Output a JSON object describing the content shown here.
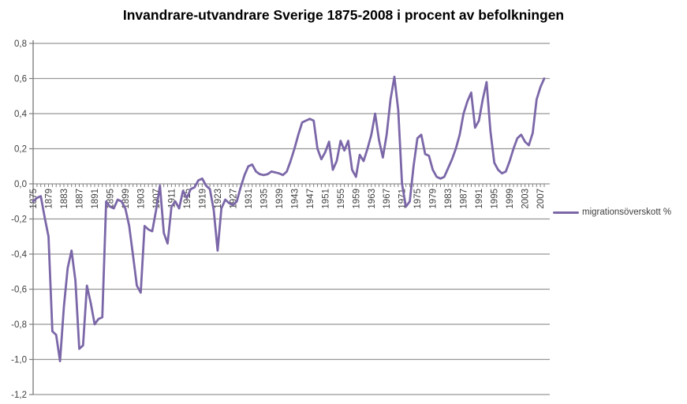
{
  "colors": {
    "line": "#7b67a8",
    "grid": "#969696",
    "axis": "#808080",
    "tick_text": "#404040",
    "title_text": "#000000"
  },
  "legend": {
    "label": "migrationsöverskott %"
  },
  "chart_data": {
    "type": "line",
    "title": "Invandrare-utvandrare Sverige 1875-2008 i procent av befolkningen",
    "xlabel": "",
    "ylabel": "",
    "x_start": 1875,
    "x_end": 2008,
    "x_tick_interval": 4,
    "x_tick_labels": [
      "1875",
      "1879",
      "1883",
      "1887",
      "1891",
      "1895",
      "1899",
      "1903",
      "1907",
      "1911",
      "1915",
      "1919",
      "1923",
      "1927",
      "1931",
      "1935",
      "1939",
      "1943",
      "1947",
      "1951",
      "1955",
      "1959",
      "1963",
      "1967",
      "1971",
      "1975",
      "1979",
      "1983",
      "1987",
      "1991",
      "1995",
      "1999",
      "2003",
      "2007"
    ],
    "ylim": [
      -1.2,
      0.8
    ],
    "y_ticks": [
      0.8,
      0.6,
      0.4,
      0.2,
      0.0,
      -0.2,
      -0.4,
      -0.6,
      -0.8,
      -1.0,
      -1.2
    ],
    "y_tick_labels": [
      "0,8",
      "0,6",
      "0,4",
      "0,2",
      "0,0",
      "-0,2",
      "-0,4",
      "-0,6",
      "-0,8",
      "-1,0",
      "-1,2"
    ],
    "grid": "horizontal",
    "legend_position": "right",
    "series": [
      {
        "name": "migrationsöverskott %",
        "x_years_from": 1875,
        "values": [
          -0.1,
          -0.08,
          -0.07,
          -0.19,
          -0.3,
          -0.84,
          -0.86,
          -1.01,
          -0.7,
          -0.48,
          -0.38,
          -0.55,
          -0.94,
          -0.92,
          -0.58,
          -0.68,
          -0.8,
          -0.77,
          -0.76,
          -0.1,
          -0.13,
          -0.14,
          -0.09,
          -0.1,
          -0.14,
          -0.24,
          -0.41,
          -0.58,
          -0.62,
          -0.24,
          -0.26,
          -0.27,
          -0.15,
          -0.01,
          -0.28,
          -0.34,
          -0.13,
          -0.1,
          -0.14,
          -0.04,
          -0.08,
          -0.03,
          -0.02,
          0.02,
          0.03,
          -0.01,
          -0.03,
          -0.15,
          -0.38,
          -0.14,
          -0.09,
          -0.11,
          -0.12,
          -0.1,
          -0.02,
          0.05,
          0.1,
          0.11,
          0.07,
          0.055,
          0.05,
          0.055,
          0.07,
          0.065,
          0.06,
          0.05,
          0.07,
          0.13,
          0.2,
          0.28,
          0.35,
          0.36,
          0.37,
          0.36,
          0.2,
          0.14,
          0.18,
          0.24,
          0.08,
          0.13,
          0.245,
          0.19,
          0.245,
          0.08,
          0.04,
          0.165,
          0.13,
          0.2,
          0.28,
          0.4,
          0.25,
          0.15,
          0.28,
          0.48,
          0.61,
          0.42,
          0.0,
          -0.13,
          -0.1,
          0.1,
          0.26,
          0.28,
          0.17,
          0.16,
          0.08,
          0.04,
          0.03,
          0.04,
          0.09,
          0.14,
          0.2,
          0.28,
          0.4,
          0.47,
          0.52,
          0.32,
          0.36,
          0.48,
          0.58,
          0.3,
          0.12,
          0.08,
          0.06,
          0.07,
          0.13,
          0.2,
          0.26,
          0.28,
          0.24,
          0.22,
          0.29,
          0.48,
          0.55,
          0.6
        ]
      }
    ]
  }
}
